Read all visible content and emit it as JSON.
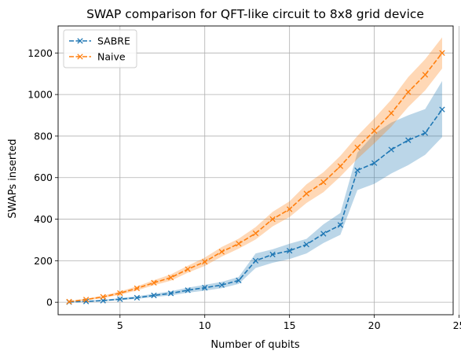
{
  "chart_data": {
    "type": "line",
    "title": "SWAP comparison for QFT-like circuit to 8x8 grid device",
    "xlabel": "Number of qubits",
    "ylabel": "SWAPs inserted",
    "xlim": [
      1.35,
      24.65
    ],
    "ylim": [
      -60,
      1330
    ],
    "xticks": [
      5,
      10,
      15,
      20,
      25
    ],
    "yticks": [
      0,
      200,
      400,
      600,
      800,
      1000,
      1200
    ],
    "grid": true,
    "legend_position": "top-left",
    "x": [
      2,
      3,
      4,
      5,
      6,
      7,
      8,
      9,
      10,
      11,
      12,
      13,
      14,
      15,
      16,
      17,
      18,
      19,
      20,
      21,
      22,
      23,
      24
    ],
    "series": [
      {
        "name": "SABRE",
        "color": "#1f77b4",
        "line_style": "dashed",
        "marker": "x",
        "values": [
          1,
          4,
          8,
          15,
          22,
          33,
          43,
          58,
          70,
          83,
          105,
          200,
          230,
          248,
          278,
          330,
          372,
          635,
          670,
          735,
          780,
          815,
          928
        ],
        "band_lower": [
          0,
          2,
          5,
          10,
          16,
          25,
          33,
          46,
          56,
          68,
          88,
          165,
          190,
          208,
          235,
          285,
          325,
          540,
          570,
          620,
          660,
          710,
          795
        ],
        "band_upper": [
          3,
          7,
          12,
          20,
          29,
          41,
          53,
          70,
          84,
          98,
          122,
          235,
          255,
          282,
          305,
          375,
          430,
          720,
          810,
          865,
          900,
          930,
          1065
        ]
      },
      {
        "name": "Naive",
        "color": "#ff7f0e",
        "line_style": "dashed",
        "marker": "x",
        "values": [
          3,
          13,
          26,
          44,
          67,
          94,
          119,
          159,
          195,
          243,
          282,
          332,
          400,
          448,
          523,
          578,
          655,
          745,
          825,
          910,
          1012,
          1095,
          1200
        ],
        "band_lower": [
          1,
          9,
          20,
          36,
          57,
          82,
          104,
          142,
          175,
          220,
          258,
          302,
          365,
          410,
          478,
          530,
          605,
          690,
          765,
          845,
          940,
          1020,
          1125
        ],
        "band_upper": [
          6,
          17,
          32,
          52,
          77,
          106,
          134,
          176,
          215,
          266,
          306,
          362,
          435,
          486,
          568,
          626,
          705,
          800,
          885,
          975,
          1084,
          1170,
          1275
        ]
      }
    ]
  }
}
